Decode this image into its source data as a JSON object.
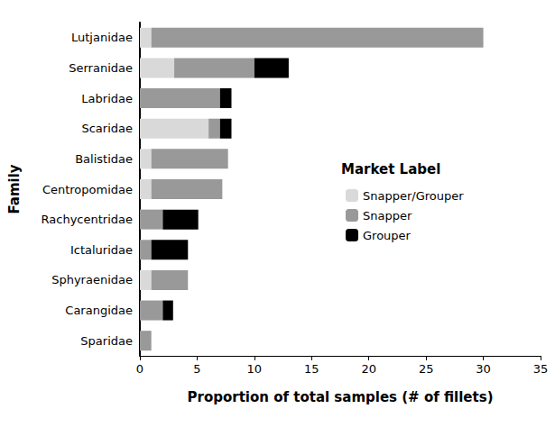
{
  "chart_data": {
    "type": "bar",
    "orientation": "horizontal",
    "stacked": true,
    "grid": false,
    "legend": "right",
    "legend_title": "Market Label",
    "x_label": "Proportion of total samples (# of fillets)",
    "y_label": "Family",
    "categories": [
      "Lutjanidae",
      "Serranidae",
      "Labridae",
      "Scaridae",
      "Balistidae",
      "Centropomidae",
      "Rachycentridae",
      "Ictaluridae",
      "Sphyraenidae",
      "Carangidae",
      "Sparidae"
    ],
    "series": [
      {
        "name": "Snapper/Grouper",
        "color": "#d9d9d9",
        "values": [
          1,
          3,
          0,
          6,
          1,
          1,
          0,
          0,
          1,
          0,
          0
        ]
      },
      {
        "name": "Snapper",
        "color": "#999999",
        "values": [
          29,
          7,
          7,
          1,
          6.7,
          6.2,
          2,
          1,
          3.2,
          2,
          1
        ]
      },
      {
        "name": "Grouper",
        "color": "#000000",
        "values": [
          0,
          3,
          1,
          1,
          0,
          0,
          3.1,
          3.2,
          0,
          0.9,
          0
        ]
      }
    ],
    "xlim": [
      0,
      35
    ],
    "xticks": [
      0,
      5,
      10,
      15,
      20,
      25,
      30,
      35
    ]
  }
}
